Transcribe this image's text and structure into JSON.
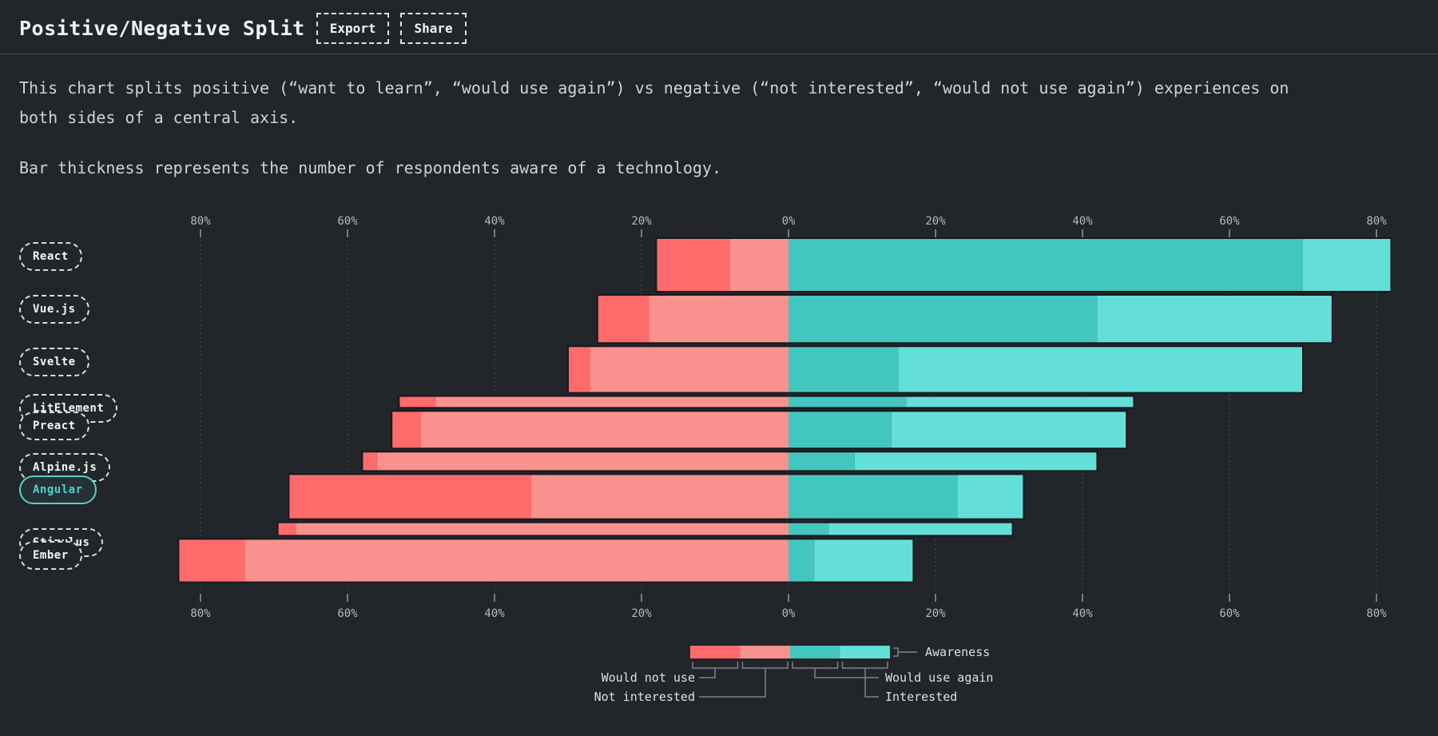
{
  "header": {
    "title": "Positive/Negative Split",
    "buttons": [
      {
        "label": "Export"
      },
      {
        "label": "Share"
      }
    ]
  },
  "description": {
    "para1": "This chart splits positive (“want to learn”, “would use again”) vs negative (“not interested”, “would not use again”) experiences on both sides of a central axis.",
    "para2": "Bar thickness represents the number of respondents aware of a technology."
  },
  "chart_data": {
    "type": "bar",
    "variant": "diverging-stacked-horizontal",
    "title": "Positive/Negative Split",
    "axis": {
      "unit": "%",
      "tick_values": [
        -80,
        -60,
        -40,
        -20,
        0,
        20,
        40,
        60,
        80
      ],
      "tick_labels": [
        "80%",
        "60%",
        "40%",
        "20%",
        "0%",
        "20%",
        "40%",
        "60%",
        "80%"
      ],
      "grid": true,
      "center_value": 0
    },
    "series_meta": {
      "negative_series": [
        "Would not use",
        "Not interested"
      ],
      "positive_series": [
        "Would use again",
        "Interested"
      ],
      "thickness_encodes": "Awareness"
    },
    "colors": {
      "would_not_use": "#ff6b6b",
      "not_interested": "#f9918f",
      "would_use_again": "#43c6c0",
      "interested": "#64ded9",
      "highlight": "#52d1c9"
    },
    "rows": [
      {
        "label": "React",
        "awareness": 1.0,
        "would_not_use": 10,
        "not_interested": 8,
        "would_use_again": 70,
        "interested": 12,
        "highlighted": false
      },
      {
        "label": "Vue.js",
        "awareness": 0.9,
        "would_not_use": 7,
        "not_interested": 19,
        "would_use_again": 42,
        "interested": 32,
        "highlighted": false
      },
      {
        "label": "Svelte",
        "awareness": 0.87,
        "would_not_use": 3,
        "not_interested": 27,
        "would_use_again": 15,
        "interested": 55,
        "highlighted": false
      },
      {
        "label": "LitElement",
        "awareness": 0.22,
        "would_not_use": 5,
        "not_interested": 48,
        "would_use_again": 16,
        "interested": 31,
        "highlighted": false
      },
      {
        "label": "Preact",
        "awareness": 0.7,
        "would_not_use": 4,
        "not_interested": 50,
        "would_use_again": 14,
        "interested": 32,
        "highlighted": false
      },
      {
        "label": "Alpine.js",
        "awareness": 0.36,
        "would_not_use": 2,
        "not_interested": 56,
        "would_use_again": 9,
        "interested": 33,
        "highlighted": false
      },
      {
        "label": "Angular",
        "awareness": 0.84,
        "would_not_use": 33,
        "not_interested": 35,
        "would_use_again": 23,
        "interested": 9,
        "highlighted": true
      },
      {
        "label": "Stimulus",
        "awareness": 0.25,
        "would_not_use": 2.5,
        "not_interested": 67,
        "would_use_again": 5.5,
        "interested": 25,
        "highlighted": false
      },
      {
        "label": "Ember",
        "awareness": 0.81,
        "would_not_use": 9,
        "not_interested": 74,
        "would_use_again": 3.5,
        "interested": 13.5,
        "highlighted": false
      }
    ]
  },
  "legend": {
    "awareness": "Awareness",
    "would_not_use": "Would not use",
    "not_interested": "Not interested",
    "would_use_again": "Would use again",
    "interested": "Interested"
  }
}
